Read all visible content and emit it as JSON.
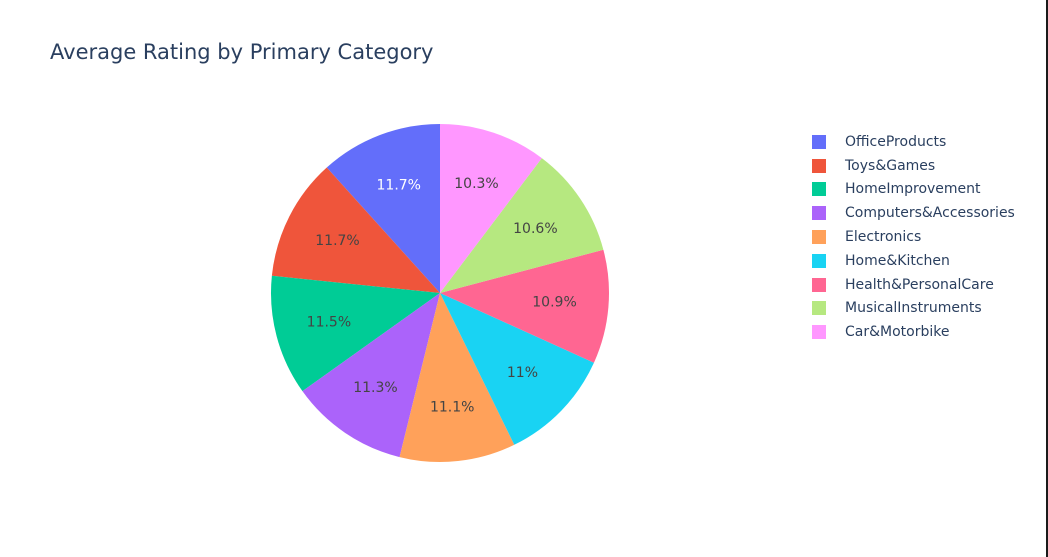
{
  "chart_data": {
    "type": "pie",
    "title": "Average Rating by Primary Category",
    "categories": [
      "OfficeProducts",
      "Toys&Games",
      "HomeImprovement",
      "Computers&Accessories",
      "Electronics",
      "Home&Kitchen",
      "Health&PersonalCare",
      "MusicalInstruments",
      "Car&Motorbike"
    ],
    "values": [
      11.7,
      11.7,
      11.5,
      11.3,
      11.1,
      11.0,
      10.9,
      10.6,
      10.3
    ],
    "value_labels": [
      "11.7%",
      "11.7%",
      "11.5%",
      "11.3%",
      "11.1%",
      "11%",
      "10.9%",
      "10.6%",
      "10.3%"
    ],
    "colors": [
      "#636efa",
      "#ef553b",
      "#00cc96",
      "#ab63fa",
      "#ffa15a",
      "#19d3f3",
      "#ff6692",
      "#b6e880",
      "#ff97ff"
    ],
    "label_colors": [
      "#ffffff",
      "#444444",
      "#444444",
      "#444444",
      "#444444",
      "#444444",
      "#444444",
      "#444444",
      "#444444"
    ],
    "direction": "counterclockwise",
    "legend_position": "right"
  }
}
